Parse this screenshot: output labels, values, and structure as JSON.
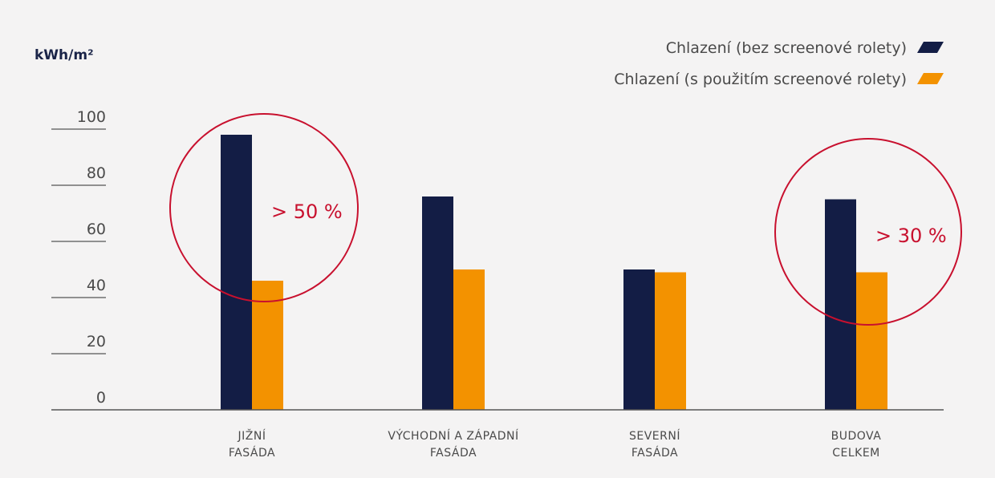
{
  "chart_data": {
    "type": "bar",
    "unit_label": "kWh/m²",
    "categories": [
      [
        "JIŽNÍ",
        "FASÁDA"
      ],
      [
        "VÝCHODNÍ A ZÁPADNÍ",
        "FASÁDA"
      ],
      [
        "SEVERNÍ",
        "FASÁDA"
      ],
      [
        "BUDOVA",
        "CELKEM"
      ]
    ],
    "series": [
      {
        "name": "Chlazení (bez screenové rolety)",
        "color": "#131d45",
        "values": [
          98,
          76,
          50,
          75
        ]
      },
      {
        "name": "Chlazení (s použitím screenové rolety)",
        "color": "#f39200",
        "values": [
          46,
          50,
          49,
          49
        ]
      }
    ],
    "yticks": [
      0,
      20,
      40,
      60,
      80,
      100
    ],
    "ylim": [
      0,
      106
    ],
    "grid": false,
    "legend_position": "top-right",
    "annotations": [
      {
        "text": "> 50 %",
        "category_index": 0,
        "color": "#c8102e"
      },
      {
        "text": "> 30 %",
        "category_index": 3,
        "color": "#c8102e"
      }
    ]
  }
}
